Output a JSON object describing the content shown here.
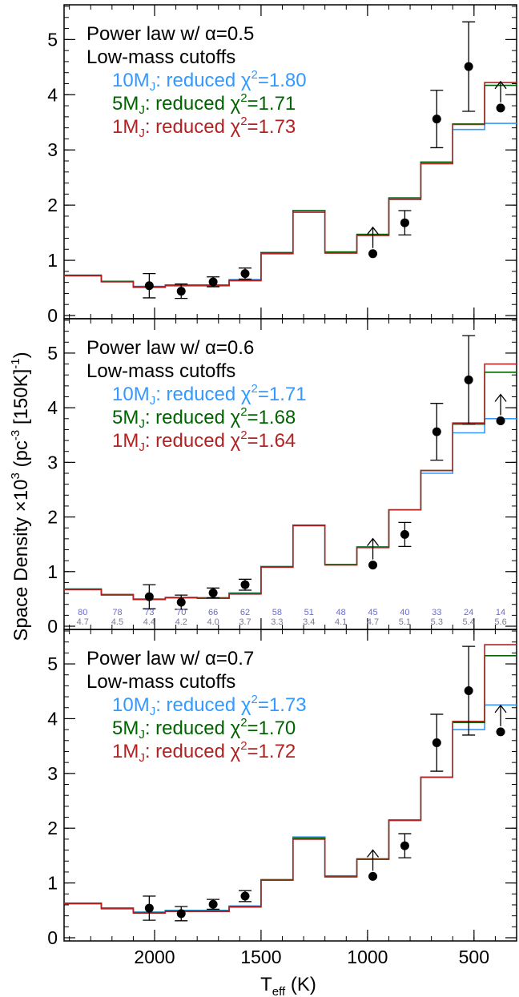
{
  "colors": {
    "m10": "#3399ff",
    "m5": "#006400",
    "m1": "#b22222",
    "obs": "#000000",
    "count_top": "#6a6ad8",
    "count_bottom": "#7a7a96"
  },
  "chart_data": {
    "type": "line",
    "figure": {
      "ylabel_main": "Space Density ×10",
      "ylabel_sup1": "3",
      "ylabel_mid": " (pc",
      "ylabel_sup2": "-3",
      "ylabel_mid2": " [150K]",
      "ylabel_sup3": "-1",
      "ylabel_end": ")",
      "xlabel_main": "T",
      "xlabel_sub": "eff",
      "xlabel_end": " (K)"
    },
    "xlim": [
      2425,
      300
    ],
    "ylim": [
      0,
      5.6
    ],
    "xticks": [
      2000,
      1500,
      1000,
      500
    ],
    "yticks": [
      0,
      1,
      2,
      3,
      4,
      5
    ],
    "bin_edges": [
      2425,
      2250,
      2100,
      1950,
      1800,
      1650,
      1500,
      1350,
      1200,
      1050,
      900,
      750,
      600,
      450,
      300
    ],
    "observed": {
      "x": [
        2025,
        1875,
        1725,
        1575,
        975,
        825,
        675,
        525,
        375
      ],
      "y": [
        0.54,
        0.44,
        0.61,
        0.76,
        1.12,
        1.68,
        3.56,
        4.51,
        3.76
      ],
      "yerr_low": [
        0.22,
        0.13,
        0.09,
        0.1,
        0,
        0.22,
        0.52,
        0.81,
        0
      ],
      "yerr_high": [
        0.22,
        0.13,
        0.09,
        0.1,
        0,
        0.22,
        0.52,
        0.81,
        0
      ],
      "lower_limit": [
        false,
        false,
        false,
        false,
        true,
        false,
        false,
        false,
        true
      ]
    },
    "panels": [
      {
        "title": "Power law w/ α=0.5",
        "subtitle": "Low-mass cutoffs",
        "series": [
          {
            "mass": "10M",
            "sub": "J",
            "text": ": reduced χ",
            "sup": "2",
            "value": "=1.80",
            "color_key": "m10",
            "values": [
              0.73,
              0.62,
              0.53,
              0.55,
              0.55,
              0.65,
              1.14,
              1.9,
              1.15,
              1.47,
              2.13,
              2.78,
              3.37,
              3.48
            ]
          },
          {
            "mass": "5M",
            "sub": "J",
            "text": ": reduced χ",
            "sup": "2",
            "value": "=1.71",
            "color_key": "m5",
            "values": [
              0.73,
              0.62,
              0.52,
              0.55,
              0.55,
              0.64,
              1.14,
              1.9,
              1.15,
              1.47,
              2.13,
              2.78,
              3.47,
              4.17
            ]
          },
          {
            "mass": "1M",
            "sub": "J",
            "text": ": reduced χ",
            "sup": "2",
            "value": "=1.73",
            "color_key": "m1",
            "values": [
              0.72,
              0.61,
              0.51,
              0.54,
              0.54,
              0.63,
              1.12,
              1.87,
              1.13,
              1.45,
              2.1,
              2.75,
              3.46,
              4.22
            ]
          }
        ]
      },
      {
        "title": "Power law w/ α=0.6",
        "subtitle": "Low-mass cutoffs",
        "series": [
          {
            "mass": "10M",
            "sub": "J",
            "text": ": reduced χ",
            "sup": "2",
            "value": "=1.71",
            "color_key": "m10",
            "values": [
              0.68,
              0.58,
              0.5,
              0.53,
              0.52,
              0.61,
              1.09,
              1.85,
              1.13,
              1.45,
              2.13,
              2.8,
              3.54,
              3.8
            ]
          },
          {
            "mass": "5M",
            "sub": "J",
            "text": ": reduced χ",
            "sup": "2",
            "value": "=1.68",
            "color_key": "m5",
            "values": [
              0.68,
              0.58,
              0.49,
              0.52,
              0.52,
              0.6,
              1.09,
              1.85,
              1.13,
              1.45,
              2.13,
              2.85,
              3.7,
              4.65
            ]
          },
          {
            "mass": "1M",
            "sub": "J",
            "text": ": reduced χ",
            "sup": "2",
            "value": "=1.64",
            "color_key": "m1",
            "values": [
              0.67,
              0.57,
              0.49,
              0.52,
              0.51,
              0.59,
              1.08,
              1.84,
              1.12,
              1.44,
              2.13,
              2.85,
              3.72,
              4.8
            ]
          }
        ],
        "counts_top": [
          "80",
          "78",
          "73",
          "70",
          "66",
          "62",
          "58",
          "51",
          "48",
          "45",
          "40",
          "33",
          "24",
          "14"
        ],
        "counts_bottom": [
          "4.7",
          "4.5",
          "4.4",
          "4.2",
          "4.0",
          "3.7",
          "3.3",
          "3.4",
          "4.1",
          "4.7",
          "5.1",
          "5.3",
          "5.4",
          "5.6"
        ]
      },
      {
        "title": "Power law w/ α=0.7",
        "subtitle": "Low-mass cutoffs",
        "series": [
          {
            "mass": "10M",
            "sub": "J",
            "text": ": reduced χ",
            "sup": "2",
            "value": "=1.73",
            "color_key": "m10",
            "values": [
              0.63,
              0.54,
              0.47,
              0.5,
              0.5,
              0.58,
              1.06,
              1.84,
              1.13,
              1.44,
              2.15,
              2.93,
              3.8,
              4.25
            ]
          },
          {
            "mass": "5M",
            "sub": "J",
            "text": ": reduced χ",
            "sup": "2",
            "value": "=1.70",
            "color_key": "m5",
            "values": [
              0.63,
              0.54,
              0.46,
              0.49,
              0.49,
              0.57,
              1.06,
              1.82,
              1.12,
              1.44,
              2.15,
              2.93,
              3.93,
              5.15
            ]
          },
          {
            "mass": "1M",
            "sub": "J",
            "text": ": reduced χ",
            "sup": "2",
            "value": "=1.72",
            "color_key": "m1",
            "values": [
              0.62,
              0.53,
              0.45,
              0.48,
              0.48,
              0.56,
              1.05,
              1.8,
              1.11,
              1.43,
              2.14,
              2.93,
              3.95,
              5.35
            ]
          }
        ]
      }
    ]
  }
}
